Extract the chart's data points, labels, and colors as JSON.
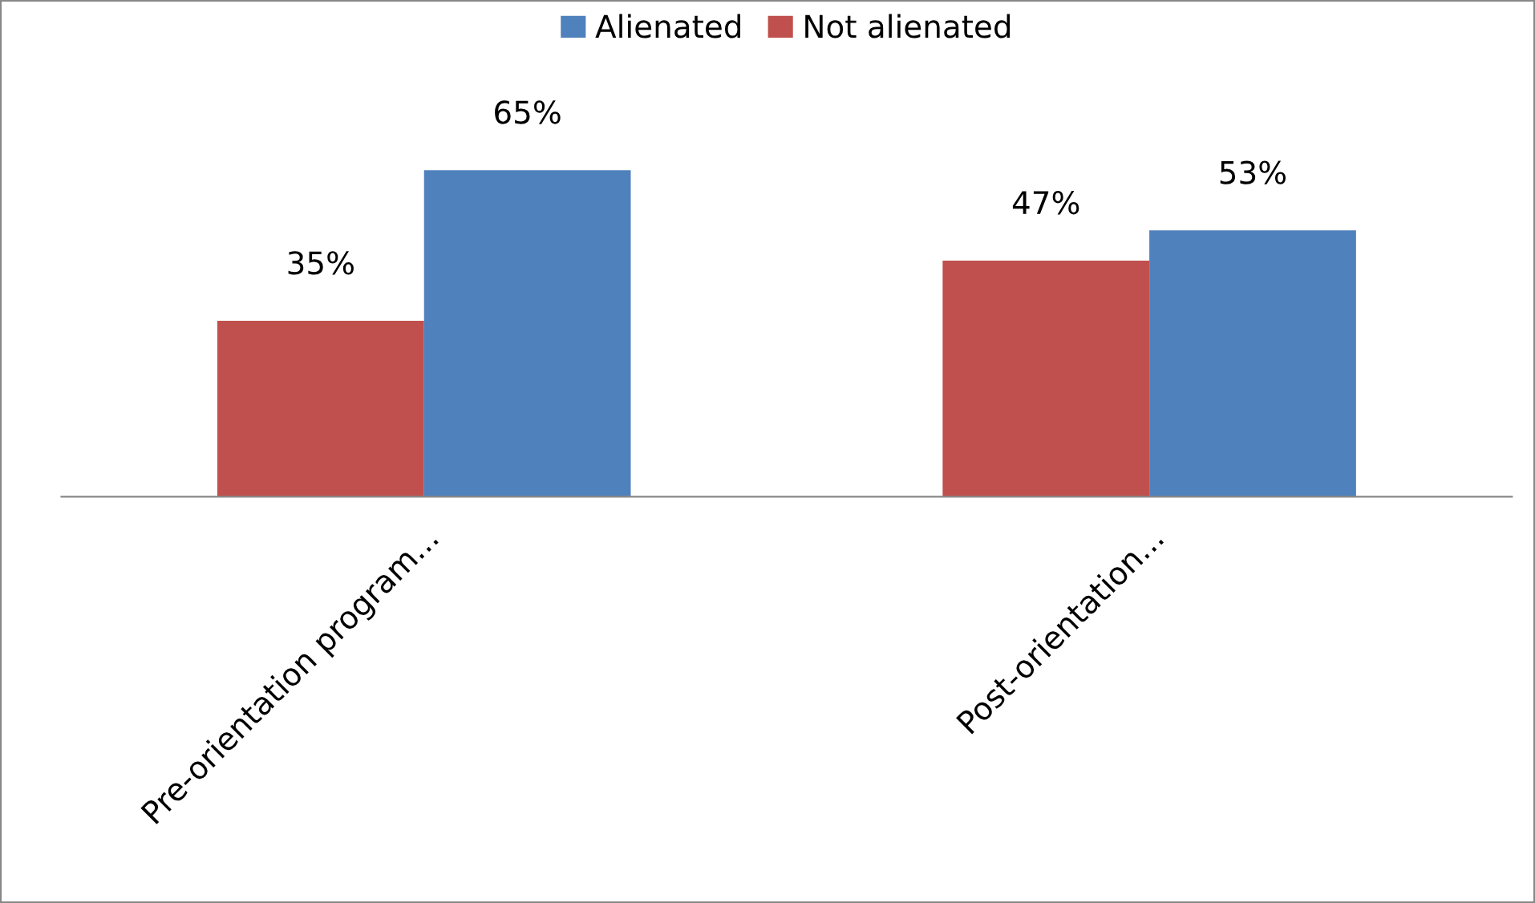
{
  "chart_data": {
    "type": "bar",
    "categories": [
      "Pre-orientation program...",
      "Post-orientation..."
    ],
    "series": [
      {
        "name": "Not alienated",
        "color": "#c0504d",
        "values": [
          35,
          47
        ],
        "value_labels": [
          "35%",
          "47%"
        ]
      },
      {
        "name": "Alienated",
        "color": "#4f81bd",
        "values": [
          65,
          53
        ],
        "value_labels": [
          "65%",
          "53%"
        ]
      }
    ],
    "legend": "top",
    "grid": false
  }
}
